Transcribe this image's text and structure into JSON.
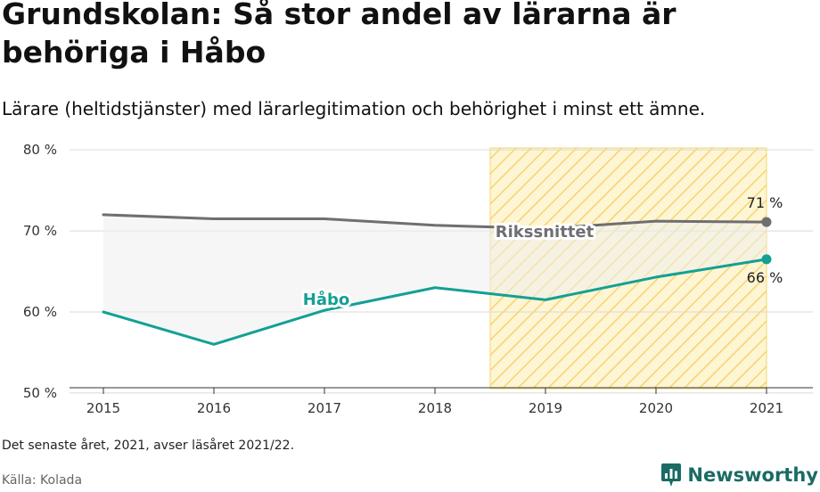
{
  "header": {
    "title": "Grundskolan: Så stor andel av lärarna är behöriga i Håbo",
    "subtitle": "Lärare (heltidstjänster) med lärarlegitimation och behörighet i minst ett ämne."
  },
  "footer": {
    "note": "Det senaste året, 2021, avser läsåret 2021/22.",
    "source": "Källa: Kolada",
    "brand": "Newsworthy"
  },
  "chart_data": {
    "type": "line",
    "x": [
      2015,
      2016,
      2017,
      2018,
      2019,
      2020,
      2021
    ],
    "x_tick_labels": [
      "2015",
      "2016",
      "2017",
      "2018",
      "2019",
      "2020",
      "2021"
    ],
    "y_ticks": [
      50,
      60,
      70,
      80
    ],
    "y_tick_labels": [
      "50 %",
      "60 %",
      "70 %",
      "80 %"
    ],
    "ylim": [
      49,
      82
    ],
    "grid": true,
    "highlight_range": [
      2018.5,
      2021
    ],
    "series": [
      {
        "name": "Rikssnittet",
        "values": [
          72.0,
          71.5,
          71.5,
          70.7,
          70.3,
          71.2,
          71.1
        ],
        "end_label": "71 %",
        "color": "#6e6e73"
      },
      {
        "name": "Håbo",
        "values": [
          60.0,
          56.0,
          60.2,
          63.0,
          61.5,
          64.3,
          66.5
        ],
        "end_label": "66 %",
        "color": "#14a094"
      }
    ],
    "colors": {
      "highlight_fill": "#fdf5d3",
      "highlight_stripe": "#f6d56e",
      "band_fill": "#eeeeef"
    }
  }
}
